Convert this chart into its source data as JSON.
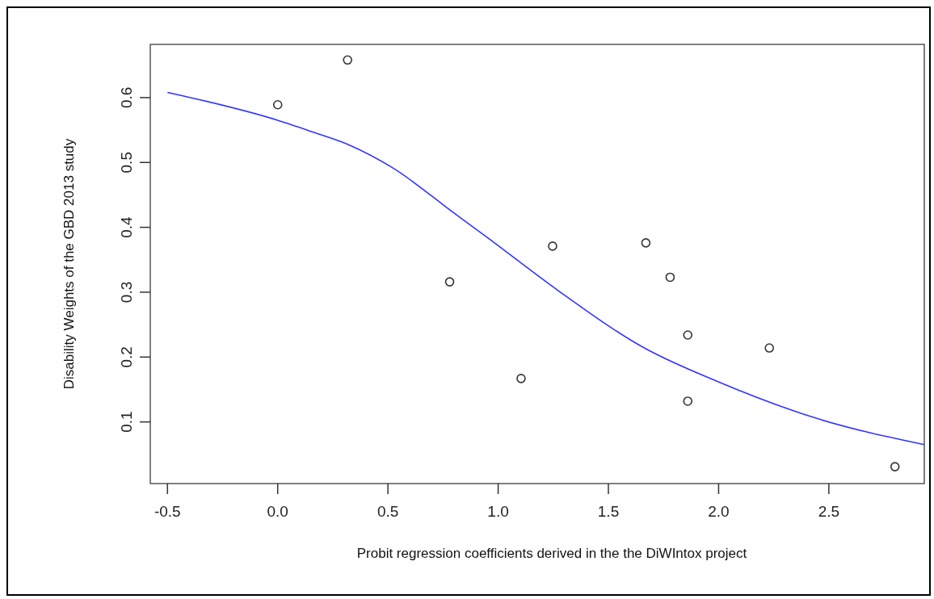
{
  "chart_data": {
    "type": "scatter",
    "xlabel": "Probit regression coefficients derived in the the DiWIntox project",
    "ylabel": "Disability Weights of the GBD 2013 study",
    "xlim": [
      -0.578,
      2.933
    ],
    "ylim": [
      0.005,
      0.682
    ],
    "xticks": [
      {
        "value": -0.5,
        "label": "-0.5"
      },
      {
        "value": 0,
        "label": "0.0"
      },
      {
        "value": 0.5,
        "label": "0.5"
      },
      {
        "value": 1,
        "label": "1.0"
      },
      {
        "value": 1.5,
        "label": "1.5"
      },
      {
        "value": 2,
        "label": "2.0"
      },
      {
        "value": 2.5,
        "label": "2.5"
      }
    ],
    "yticks": [
      0.1,
      0.2,
      0.3,
      0.4,
      0.5,
      0.6
    ],
    "grid": false,
    "series": [
      {
        "color": "#333333",
        "marker": "circle",
        "x": [
          0.0,
          0.317,
          0.78,
          1.104,
          1.247,
          1.67,
          1.78,
          1.86,
          1.86,
          2.23,
          2.8
        ],
        "values": [
          0.589,
          0.658,
          0.316,
          0.167,
          0.371,
          0.376,
          0.323,
          0.234,
          0.132,
          0.214,
          0.031
        ]
      },
      {
        "type": "line",
        "color": "#3333ff",
        "marker": "none",
        "line_style": "solid",
        "x": [
          -0.5,
          0.0,
          0.15,
          0.317,
          0.52,
          0.8,
          0.948,
          1.27,
          1.663,
          1.99,
          2.44,
          2.933
        ],
        "values": [
          0.608,
          0.565,
          0.548,
          0.528,
          0.492,
          0.422,
          0.385,
          0.303,
          0.214,
          0.163,
          0.106,
          0.065
        ]
      }
    ]
  }
}
